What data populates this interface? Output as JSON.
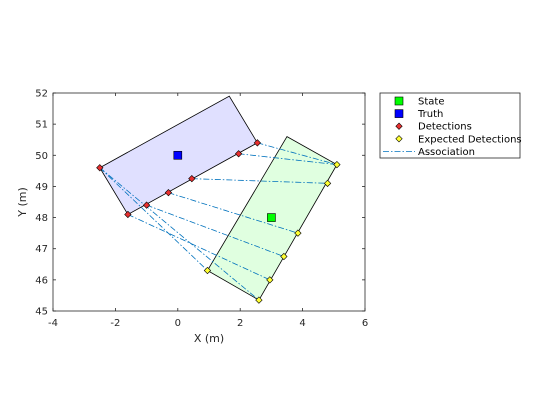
{
  "chart_data": {
    "type": "scatter",
    "xlabel": "X (m)",
    "ylabel": "Y (m)",
    "xlim": [
      -4,
      6
    ],
    "ylim": [
      45,
      52
    ],
    "x_ticks": [
      "-4",
      "-2",
      "0",
      "2",
      "4",
      "6"
    ],
    "y_ticks": [
      "45",
      "46",
      "47",
      "48",
      "49",
      "50",
      "51",
      "52"
    ],
    "grid": false,
    "legend_position": "top-right outside",
    "truth_region": {
      "polygon": [
        [
          -2.5,
          49.6
        ],
        [
          1.65,
          51.9
        ],
        [
          2.55,
          50.4
        ],
        [
          -1.6,
          48.1
        ]
      ],
      "fill": "#e0e0ff",
      "edge": "#000000"
    },
    "state_region": {
      "polygon": [
        [
          3.5,
          50.6
        ],
        [
          5.1,
          49.7
        ],
        [
          2.6,
          45.35
        ],
        [
          0.95,
          46.3
        ]
      ],
      "fill": "#e0ffe0",
      "edge": "#000000"
    },
    "series": [
      {
        "name": "State",
        "marker": "square",
        "color": "#00ff00",
        "edge": "#000000",
        "points": [
          [
            3.0,
            48.0
          ]
        ]
      },
      {
        "name": "Truth",
        "marker": "square",
        "color": "#0000ff",
        "edge": "#000000",
        "points": [
          [
            0.0,
            50.0
          ]
        ]
      },
      {
        "name": "Detections",
        "marker": "diamond",
        "color": "#e83030",
        "edge": "#000000",
        "points": [
          [
            -2.5,
            49.6
          ],
          [
            -1.6,
            48.1
          ],
          [
            -1.0,
            48.4
          ],
          [
            -0.3,
            48.8
          ],
          [
            0.45,
            49.25
          ],
          [
            1.95,
            50.05
          ],
          [
            2.55,
            50.4
          ]
        ]
      },
      {
        "name": "Expected Detections",
        "marker": "diamond",
        "color": "#ffff33",
        "edge": "#000000",
        "points": [
          [
            0.95,
            46.3
          ],
          [
            2.6,
            45.35
          ],
          [
            2.95,
            46.0
          ],
          [
            3.4,
            46.75
          ],
          [
            3.85,
            47.5
          ],
          [
            4.8,
            49.1
          ],
          [
            5.1,
            49.7
          ]
        ]
      },
      {
        "name": "Association",
        "line": "dash-dot",
        "color": "#0072bd",
        "segments": [
          [
            [
              -2.5,
              49.6
            ],
            [
              0.95,
              46.3
            ]
          ],
          [
            [
              -2.5,
              49.6
            ],
            [
              2.6,
              45.35
            ]
          ],
          [
            [
              -1.6,
              48.1
            ],
            [
              2.95,
              46.0
            ]
          ],
          [
            [
              -1.0,
              48.4
            ],
            [
              3.4,
              46.75
            ]
          ],
          [
            [
              -0.3,
              48.8
            ],
            [
              3.85,
              47.5
            ]
          ],
          [
            [
              0.45,
              49.25
            ],
            [
              4.8,
              49.1
            ]
          ],
          [
            [
              1.95,
              50.05
            ],
            [
              5.1,
              49.7
            ]
          ],
          [
            [
              2.55,
              50.4
            ],
            [
              5.1,
              49.7
            ]
          ]
        ]
      }
    ]
  }
}
